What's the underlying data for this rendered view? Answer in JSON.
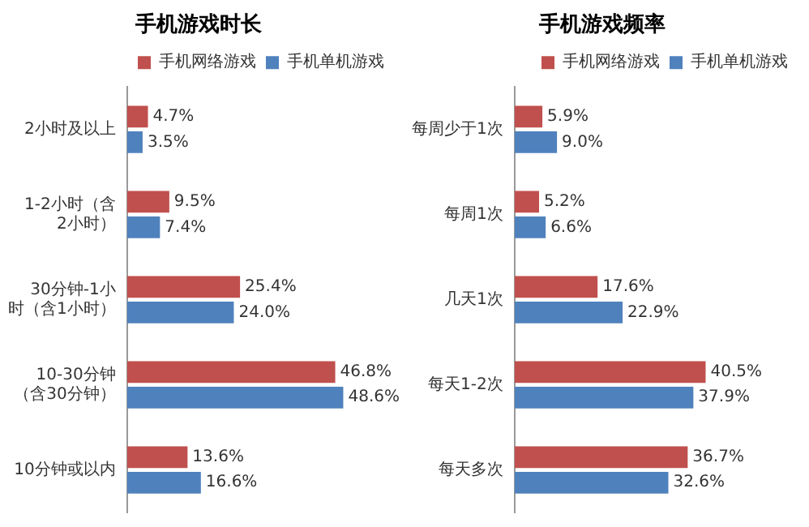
{
  "chart_data": [
    {
      "type": "bar",
      "orientation": "horizontal",
      "title": "手机游戏时长",
      "categories": [
        "2小时及以上",
        "1-2小时（含2小时）",
        "30分钟-1小时（含1小时）",
        "10-30分钟（含30分钟）",
        "10分钟或以内"
      ],
      "series": [
        {
          "name": "手机网络游戏",
          "color": "#c0504d",
          "values": [
            4.7,
            9.5,
            25.4,
            46.8,
            13.6
          ],
          "value_labels": [
            "4.7%",
            "9.5%",
            "25.4%",
            "46.8%",
            "13.6%"
          ]
        },
        {
          "name": "手机单机游戏",
          "color": "#4f81bd",
          "values": [
            3.5,
            7.4,
            24.0,
            48.6,
            16.6
          ],
          "value_labels": [
            "3.5%",
            "7.4%",
            "24.0%",
            "48.6%",
            "16.6%"
          ]
        }
      ],
      "legend": "top",
      "tick_labels": "y",
      "grid": false
    },
    {
      "type": "bar",
      "orientation": "horizontal",
      "title": "手机游戏频率",
      "categories": [
        "每周少于1次",
        "每周1次",
        "几天1次",
        "每天1-2次",
        "每天多次"
      ],
      "series": [
        {
          "name": "手机网络游戏",
          "color": "#c0504d",
          "values": [
            5.9,
            5.2,
            17.6,
            40.5,
            36.7
          ],
          "value_labels": [
            "5.9%",
            "5.2%",
            "17.6%",
            "40.5%",
            "36.7%"
          ]
        },
        {
          "name": "手机单机游戏",
          "color": "#4f81bd",
          "values": [
            9.0,
            6.6,
            22.9,
            37.9,
            32.6
          ],
          "value_labels": [
            "9.0%",
            "6.6%",
            "22.9%",
            "37.9%",
            "32.6%"
          ]
        }
      ],
      "legend": "top",
      "tick_labels": "y",
      "grid": false
    }
  ]
}
